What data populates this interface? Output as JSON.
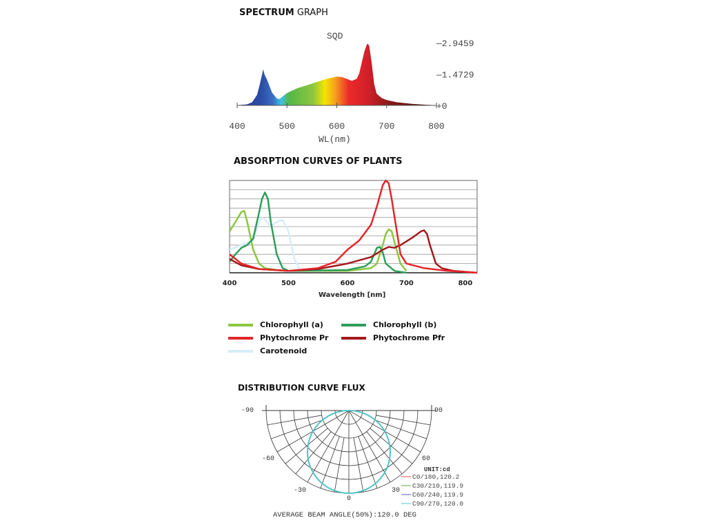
{
  "chart_data": [
    {
      "type": "area",
      "title_bold": "SPECTRUM",
      "title_rest": " GRAPH",
      "series_label": "SQD",
      "xlabel": "WL(nm)",
      "xticks": [
        400,
        500,
        600,
        700,
        800
      ],
      "yticks": [
        "0",
        "1.4729",
        "2.9459"
      ],
      "ylim": [
        0,
        2.9459
      ],
      "xlim": [
        400,
        800
      ],
      "x": [
        400,
        420,
        430,
        440,
        445,
        450,
        452,
        455,
        460,
        470,
        480,
        485,
        490,
        500,
        520,
        540,
        560,
        580,
        600,
        610,
        620,
        630,
        640,
        645,
        650,
        655,
        660,
        662,
        665,
        670,
        675,
        680,
        690,
        700,
        720,
        750,
        780,
        800
      ],
      "y": [
        0.01,
        0.05,
        0.15,
        0.5,
        0.95,
        1.45,
        1.7,
        1.45,
        1.2,
        0.6,
        0.32,
        0.3,
        0.4,
        0.58,
        0.8,
        0.95,
        1.1,
        1.25,
        1.35,
        1.33,
        1.25,
        1.15,
        1.25,
        1.5,
        2.0,
        2.5,
        2.85,
        2.9,
        2.8,
        2.0,
        1.0,
        0.55,
        0.35,
        0.25,
        0.15,
        0.07,
        0.03,
        0.01
      ]
    },
    {
      "type": "line",
      "title": "ABSORPTION CURVES OF PLANTS",
      "xlabel": "Wavelength [nm]",
      "xticks": [
        400,
        500,
        600,
        700,
        800
      ],
      "xlim": [
        400,
        820
      ],
      "ylim": [
        0,
        1
      ],
      "grid": true,
      "series": [
        {
          "name": "Chlorophyll (a)",
          "color": "#8cc63f",
          "x": [
            400,
            410,
            420,
            425,
            430,
            440,
            450,
            460,
            480,
            500,
            600,
            640,
            650,
            660,
            665,
            670,
            675,
            680,
            690,
            700
          ],
          "y": [
            0.45,
            0.55,
            0.66,
            0.67,
            0.55,
            0.25,
            0.1,
            0.05,
            0.03,
            0.02,
            0.02,
            0.05,
            0.1,
            0.3,
            0.42,
            0.47,
            0.45,
            0.33,
            0.1,
            0.02
          ]
        },
        {
          "name": "Chlorophyll (b)",
          "color": "#2e9e5b",
          "x": [
            400,
            410,
            420,
            430,
            440,
            450,
            455,
            460,
            465,
            470,
            480,
            490,
            500,
            600,
            630,
            640,
            650,
            655,
            660,
            665,
            680,
            700
          ],
          "y": [
            0.12,
            0.2,
            0.27,
            0.3,
            0.37,
            0.65,
            0.8,
            0.87,
            0.8,
            0.55,
            0.2,
            0.05,
            0.02,
            0.03,
            0.07,
            0.12,
            0.27,
            0.28,
            0.22,
            0.1,
            0.02,
            0.0
          ]
        },
        {
          "name": "Phytochrome Pr",
          "color": "#e2262a",
          "x": [
            400,
            420,
            450,
            500,
            550,
            580,
            600,
            620,
            640,
            650,
            660,
            665,
            670,
            675,
            680,
            690,
            700,
            730,
            770,
            800,
            820
          ],
          "y": [
            0.2,
            0.1,
            0.04,
            0.02,
            0.05,
            0.12,
            0.25,
            0.35,
            0.52,
            0.72,
            0.95,
            1.0,
            0.97,
            0.8,
            0.6,
            0.2,
            0.1,
            0.05,
            0.02,
            0.01,
            0.0
          ]
        },
        {
          "name": "Phytochrome Pfr",
          "color": "#a31919",
          "x": [
            400,
            420,
            450,
            500,
            550,
            600,
            640,
            660,
            670,
            680,
            690,
            710,
            725,
            730,
            735,
            740,
            750,
            760,
            780,
            820
          ],
          "y": [
            0.15,
            0.08,
            0.04,
            0.02,
            0.04,
            0.1,
            0.17,
            0.25,
            0.28,
            0.27,
            0.3,
            0.38,
            0.45,
            0.46,
            0.42,
            0.3,
            0.1,
            0.05,
            0.02,
            0.0
          ]
        },
        {
          "name": "Carotenoid",
          "color": "#d6edf5",
          "x": [
            400,
            420,
            440,
            450,
            455,
            460,
            470,
            480,
            490,
            500,
            510,
            520
          ],
          "y": [
            0.25,
            0.3,
            0.35,
            0.55,
            0.6,
            0.58,
            0.5,
            0.55,
            0.57,
            0.45,
            0.15,
            0.02
          ]
        }
      ]
    },
    {
      "type": "polar",
      "title": "DISTRIBUTION CURVE FLUX",
      "angle_labels": [
        "-90",
        "90",
        "-60",
        "60",
        "-30",
        "30",
        "0"
      ],
      "unit_label": "UNIT:cd",
      "legend": [
        {
          "label": "C0/180,120.2",
          "color": "#e05050"
        },
        {
          "label": "C30/210,119.9",
          "color": "#50b040"
        },
        {
          "label": "C60/240,119.9",
          "color": "#5050c0"
        },
        {
          "label": "C90/270,120.0",
          "color": "#4fc3c8"
        }
      ],
      "footer": "AVERAGE BEAM ANGLE(50%):120.0 DEG",
      "beam_angle_deg": 120.0
    }
  ]
}
